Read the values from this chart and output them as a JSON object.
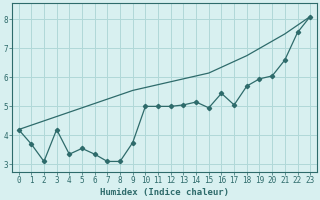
{
  "line1_x": [
    0,
    1,
    2,
    3,
    4,
    5,
    6,
    7,
    8,
    9,
    10,
    11,
    12,
    13,
    14,
    15,
    16,
    17,
    18,
    19,
    20,
    21,
    22,
    23
  ],
  "line1_y": [
    4.2,
    3.7,
    3.1,
    4.2,
    3.35,
    3.55,
    3.35,
    3.1,
    3.1,
    3.75,
    5.0,
    5.0,
    5.0,
    5.05,
    5.15,
    4.95,
    5.45,
    5.05,
    5.7,
    5.95,
    6.05,
    6.6,
    7.55,
    8.1
  ],
  "line2_x": [
    0,
    3,
    6,
    9,
    12,
    15,
    18,
    21,
    23
  ],
  "line2_y": [
    4.2,
    4.65,
    5.1,
    5.55,
    5.85,
    6.15,
    6.75,
    7.5,
    8.1
  ],
  "line_color": "#2e6b6b",
  "bg_color": "#d8f0f0",
  "grid_color": "#b0d8d8",
  "xlabel": "Humidex (Indice chaleur)",
  "xlim": [
    -0.5,
    23.5
  ],
  "ylim": [
    2.75,
    8.55
  ],
  "yticks": [
    3,
    4,
    5,
    6,
    7,
    8
  ],
  "xticks": [
    0,
    1,
    2,
    3,
    4,
    5,
    6,
    7,
    8,
    9,
    10,
    11,
    12,
    13,
    14,
    15,
    16,
    17,
    18,
    19,
    20,
    21,
    22,
    23
  ],
  "marker": "D",
  "markersize": 2.2,
  "linewidth": 0.9
}
